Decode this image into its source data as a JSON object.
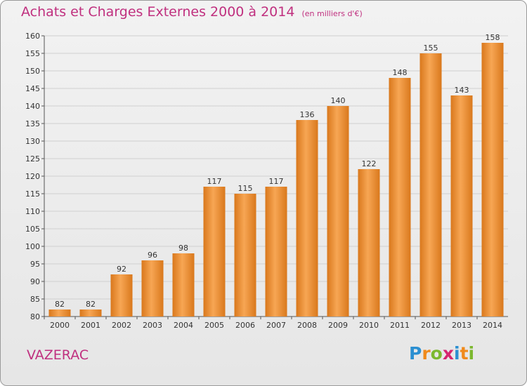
{
  "title": "Achats et Charges Externes 2000 à 2014",
  "unit_label": "(en milliers d'€)",
  "commune": "VAZERAC",
  "logo_letters": [
    "P",
    "r",
    "o",
    "x",
    "i",
    "t",
    "i"
  ],
  "colors": {
    "title": "#c0307f",
    "bar_light": "#f7a654",
    "bar_dark": "#d9781c",
    "grid": "#d0d0d0",
    "logo": [
      "#2b8fd1",
      "#f08a1c",
      "#7cb82f",
      "#d6256f",
      "#2b8fd1",
      "#f08a1c",
      "#7cb82f"
    ]
  },
  "chart_data": {
    "type": "bar",
    "title": "Achats et Charges Externes 2000 à 2014",
    "xlabel": "",
    "ylabel": "",
    "categories": [
      "2000",
      "2001",
      "2002",
      "2003",
      "2004",
      "2005",
      "2006",
      "2007",
      "2008",
      "2009",
      "2010",
      "2011",
      "2012",
      "2013",
      "2014"
    ],
    "values": [
      82,
      82,
      92,
      96,
      98,
      117,
      115,
      117,
      136,
      140,
      122,
      148,
      155,
      143,
      158
    ],
    "ylim": [
      80,
      160
    ],
    "yticks": [
      80,
      85,
      90,
      95,
      100,
      105,
      110,
      115,
      120,
      125,
      130,
      135,
      140,
      145,
      150,
      155,
      160
    ],
    "grid": true
  }
}
